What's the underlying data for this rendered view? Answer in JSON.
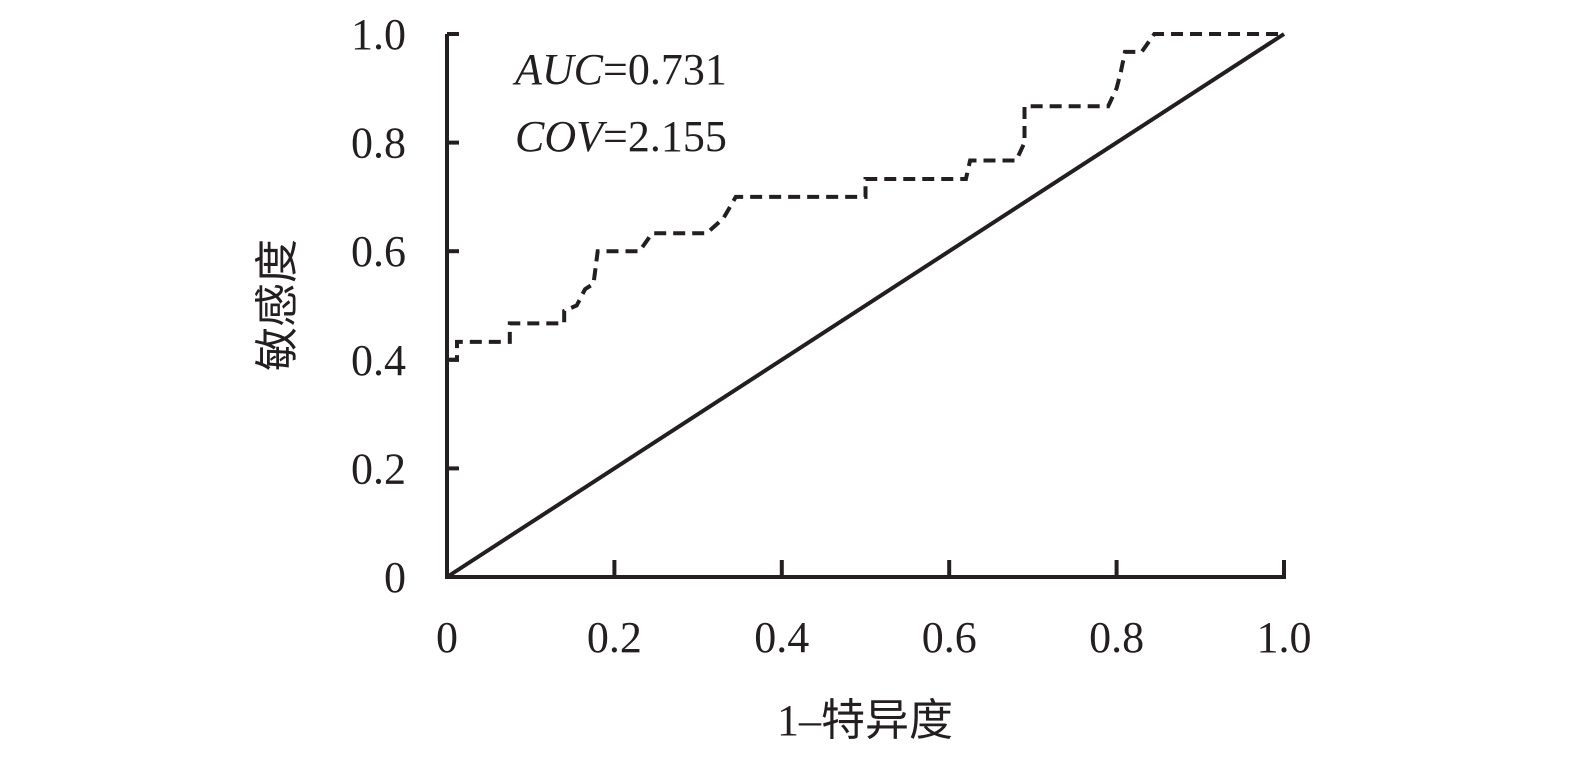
{
  "chart_data": {
    "type": "line",
    "xlabel": "1–特异度",
    "ylabel": "敏感度",
    "xlim": [
      0,
      1
    ],
    "ylim": [
      0,
      1
    ],
    "x_ticks": [
      0,
      0.2,
      0.4,
      0.6,
      0.8,
      1.0
    ],
    "y_ticks": [
      0,
      0.2,
      0.4,
      0.6,
      0.8,
      1.0
    ],
    "x_tick_labels": [
      "0",
      "0.2",
      "0.4",
      "0.6",
      "0.8",
      "1.0"
    ],
    "y_tick_labels": [
      "0",
      "0.2",
      "0.4",
      "0.6",
      "0.8",
      "1.0"
    ],
    "grid": false,
    "colors": {
      "ink": "#231f20"
    },
    "annotations": [
      {
        "variable": "AUC",
        "value": "=0.731"
      },
      {
        "variable": "COV",
        "value": "=2.155"
      }
    ],
    "series": [
      {
        "style": "dashed",
        "points": [
          [
            0,
            0.37
          ],
          [
            0,
            0.4
          ],
          [
            0.012,
            0.4
          ],
          [
            0.012,
            0.433
          ],
          [
            0.075,
            0.433
          ],
          [
            0.075,
            0.467
          ],
          [
            0.14,
            0.467
          ],
          [
            0.14,
            0.49
          ],
          [
            0.155,
            0.5
          ],
          [
            0.165,
            0.53
          ],
          [
            0.175,
            0.54
          ],
          [
            0.18,
            0.6
          ],
          [
            0.23,
            0.6
          ],
          [
            0.245,
            0.633
          ],
          [
            0.31,
            0.633
          ],
          [
            0.33,
            0.66
          ],
          [
            0.345,
            0.7
          ],
          [
            0.5,
            0.7
          ],
          [
            0.5,
            0.733
          ],
          [
            0.62,
            0.733
          ],
          [
            0.625,
            0.767
          ],
          [
            0.68,
            0.767
          ],
          [
            0.69,
            0.8
          ],
          [
            0.69,
            0.867
          ],
          [
            0.79,
            0.867
          ],
          [
            0.8,
            0.9
          ],
          [
            0.805,
            0.93
          ],
          [
            0.81,
            0.967
          ],
          [
            0.83,
            0.967
          ],
          [
            0.845,
            1.0
          ],
          [
            1.0,
            1.0
          ]
        ]
      },
      {
        "style": "solid",
        "points": [
          [
            0,
            0
          ],
          [
            1.0,
            1.0
          ]
        ]
      }
    ]
  }
}
